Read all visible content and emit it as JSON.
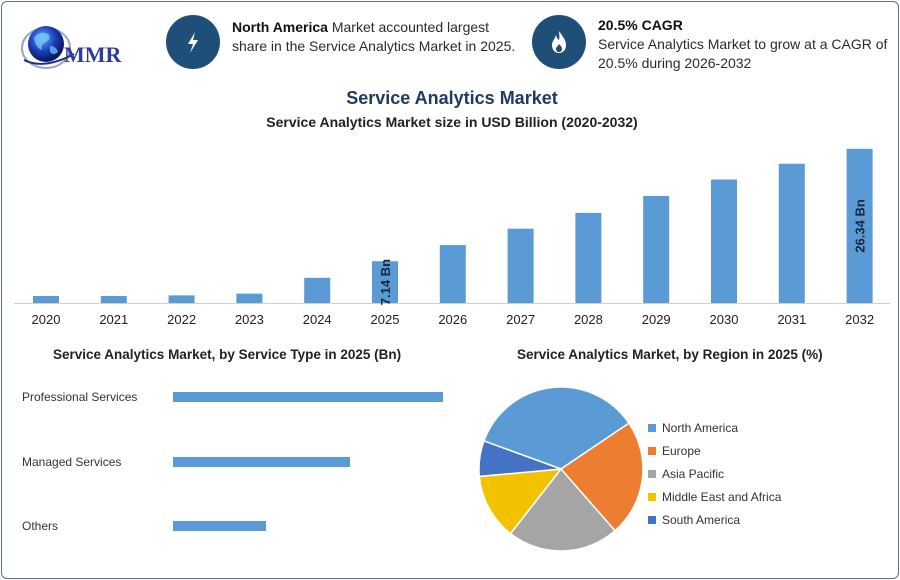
{
  "logo": {
    "text": "MMR"
  },
  "header": {
    "stat1": {
      "highlight": "North America",
      "text": " Market accounted largest share in the Service Analytics Market in 2025.",
      "icon": "lightning-icon"
    },
    "stat2": {
      "highlight": "20.5% CAGR",
      "text": "Service Analytics Market to grow at a CAGR of 20.5% during 2026-2032",
      "icon": "flame-icon"
    }
  },
  "title": "Service Analytics Market",
  "subtitle": "Service Analytics Market size in USD Billion (2020-2032)",
  "service_type_title": "Service Analytics Market, by Service Type in 2025 (Bn)",
  "region_title": "Service Analytics Market, by Region in 2025 (%)",
  "colors": {
    "bar": "#5b9bd5",
    "dark_blue": "#1f4e79"
  },
  "chart_data": [
    {
      "type": "bar",
      "title": "Service Analytics Market size in USD Billion (2020-2032)",
      "categories": [
        "2020",
        "2021",
        "2022",
        "2023",
        "2024",
        "2025",
        "2026",
        "2027",
        "2028",
        "2029",
        "2030",
        "2031",
        "2032"
      ],
      "values": [
        1.2,
        1.2,
        1.3,
        1.6,
        4.3,
        7.14,
        9.9,
        12.7,
        15.4,
        18.3,
        21.1,
        23.8,
        26.34
      ],
      "data_labels": [
        {
          "index": 5,
          "text": "7.14 Bn"
        },
        {
          "index": 12,
          "text": "26.34 Bn"
        }
      ],
      "ylim": [
        0,
        27
      ]
    },
    {
      "type": "bar",
      "orientation": "horizontal",
      "title": "Service Analytics Market, by Service Type in 2025 (Bn)",
      "categories": [
        "Professional Services",
        "Managed Services",
        "Others"
      ],
      "values": [
        3.5,
        2.3,
        1.2
      ],
      "xlim": [
        0,
        3.5
      ]
    },
    {
      "type": "pie",
      "title": "Service Analytics Market, by Region in 2025 (%)",
      "categories": [
        "North America",
        "Europe",
        "Asia Pacific",
        "Middle East and Africa",
        "South America"
      ],
      "values": [
        35,
        23,
        22,
        13,
        7
      ],
      "colors": [
        "#5b9bd5",
        "#ed7d31",
        "#a5a5a5",
        "#f2c200",
        "#4472c4"
      ]
    }
  ]
}
